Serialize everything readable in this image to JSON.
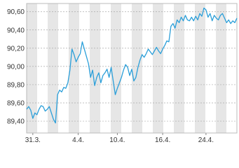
{
  "chart_data": {
    "type": "line",
    "series": [
      {
        "name": null,
        "color": "#2b9fd9",
        "values": [
          89.53,
          89.56,
          89.52,
          89.43,
          89.49,
          89.47,
          89.53,
          89.57,
          89.56,
          89.51,
          89.53,
          89.56,
          89.49,
          89.42,
          89.38,
          89.69,
          89.74,
          89.72,
          89.77,
          89.76,
          89.82,
          89.96,
          90.19,
          90.13,
          90.05,
          90.1,
          90.14,
          90.27,
          90.19,
          90.11,
          90.03,
          89.88,
          89.96,
          89.79,
          89.88,
          89.93,
          89.82,
          89.9,
          89.93,
          89.97,
          89.88,
          89.99,
          89.84,
          89.69,
          89.76,
          89.82,
          89.88,
          89.96,
          90.02,
          89.99,
          89.9,
          89.97,
          89.84,
          89.88,
          89.99,
          90.07,
          90.13,
          90.1,
          90.14,
          90.19,
          90.16,
          90.13,
          90.17,
          90.21,
          90.17,
          90.14,
          90.19,
          90.23,
          90.28,
          90.27,
          90.44,
          90.47,
          90.42,
          90.51,
          90.48,
          90.54,
          90.5,
          90.56,
          90.51,
          90.5,
          90.54,
          90.5,
          90.55,
          90.51,
          90.58,
          90.55,
          90.64,
          90.62,
          90.54,
          90.58,
          90.5,
          90.56,
          90.53,
          90.51,
          90.56,
          90.58,
          90.53,
          90.48,
          90.51,
          90.47,
          90.5,
          90.48,
          90.53
        ]
      }
    ],
    "xlim": [
      0,
      102
    ],
    "xticks": [
      {
        "value": 3,
        "label": "31.3."
      },
      {
        "value": 25,
        "label": "4.4."
      },
      {
        "value": 44,
        "label": "10.4."
      },
      {
        "value": 66,
        "label": "16.4."
      },
      {
        "value": 87,
        "label": "24.4."
      }
    ],
    "ylim": [
      89.27,
      90.69
    ],
    "yticks": [
      {
        "value": 89.4,
        "label": "89,40"
      },
      {
        "value": 89.6,
        "label": "89,60"
      },
      {
        "value": 89.8,
        "label": "89,80"
      },
      {
        "value": 90.0,
        "label": "90,00"
      },
      {
        "value": 90.2,
        "label": "90,20"
      },
      {
        "value": 90.4,
        "label": "90,40"
      },
      {
        "value": 90.6,
        "label": "90,60"
      }
    ],
    "grid": true
  }
}
